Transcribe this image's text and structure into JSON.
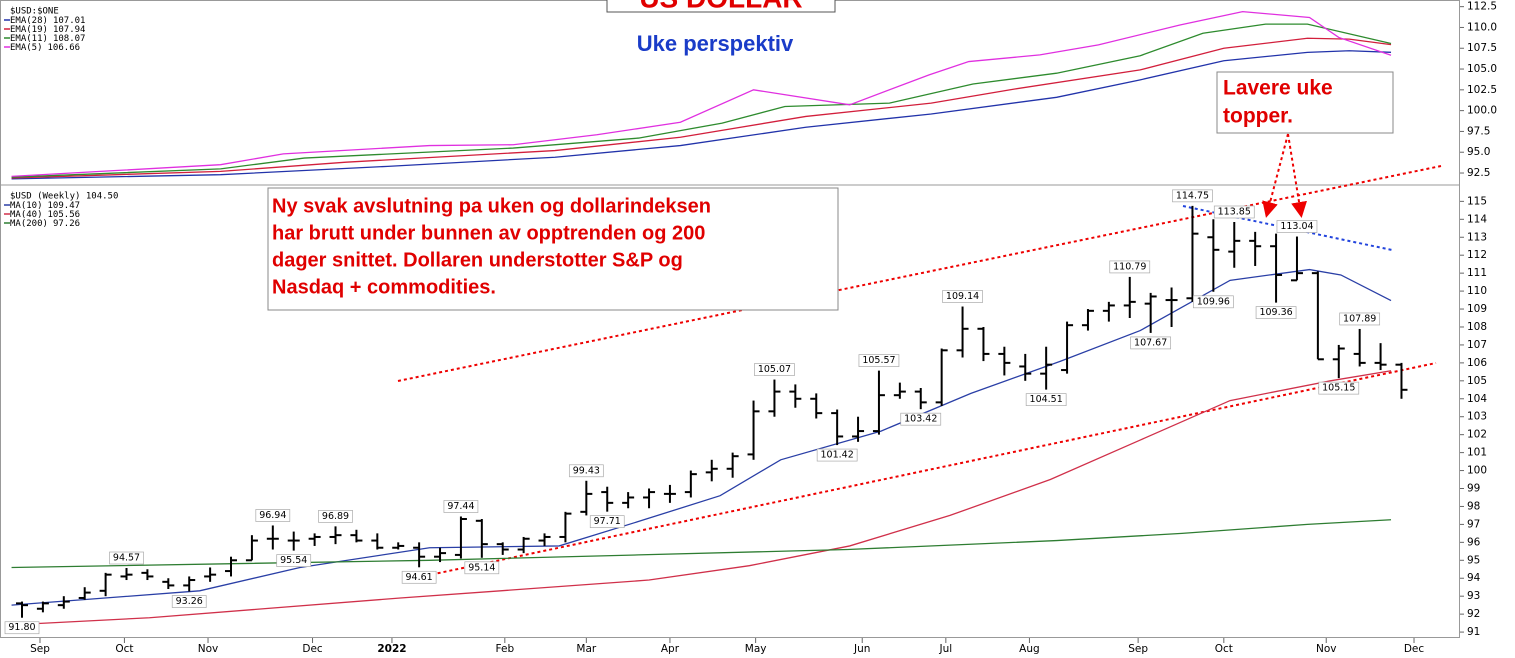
{
  "chart_data": [
    {
      "type": "line",
      "title": "US DOLLAR",
      "subtitle": "Uke perspektiv",
      "legend_title": "$USD:$ONE",
      "xlim": [
        -0.67,
        68.8
      ],
      "ylim": [
        91.3,
        113.3
      ],
      "yticks": [
        92.5,
        {
          "value": 95,
          "label": "95.0"
        },
        97.5,
        {
          "value": 100,
          "label": "100.0"
        },
        102.5,
        {
          "value": 105,
          "label": "105.0"
        },
        107.5,
        {
          "value": 110,
          "label": "110.0"
        },
        112.5
      ],
      "series": [
        {
          "name": "EMA(28)",
          "color": "#2233aa",
          "x": [
            -0.5,
            9.5,
            17.5,
            25.5,
            31.5,
            37.5,
            43.5,
            49.5,
            53.5,
            57.5,
            61.5,
            63.5,
            65.5
          ],
          "values": [
            91.8,
            92.3,
            93.3,
            94.4,
            95.8,
            98.0,
            99.6,
            101.6,
            103.7,
            106.0,
            107.0,
            107.2,
            107.01
          ]
        },
        {
          "name": "EMA(19)",
          "color": "#d21f3c",
          "x": [
            -0.5,
            9.5,
            15.5,
            25.5,
            31.5,
            37.5,
            43.5,
            47.5,
            53.5,
            57.5,
            61.5,
            63.5,
            65.5
          ],
          "values": [
            91.9,
            92.7,
            93.8,
            95.2,
            96.8,
            99.3,
            100.9,
            102.6,
            104.9,
            107.5,
            108.7,
            108.6,
            107.94
          ]
        },
        {
          "name": "EMA(11)",
          "color": "#2e8b2e",
          "x": [
            -0.5,
            9.5,
            13.5,
            23.5,
            29.5,
            33.5,
            36.5,
            41.5,
            45.5,
            49.5,
            53.5,
            56.5,
            59.5,
            61.5,
            65.5
          ],
          "values": [
            92.0,
            93.0,
            94.3,
            95.5,
            96.7,
            98.5,
            100.5,
            100.9,
            103.2,
            104.5,
            106.6,
            109.3,
            110.4,
            110.4,
            108.07
          ]
        },
        {
          "name": "EMA(5)",
          "color": "#e030e0",
          "x": [
            -0.5,
            4.5,
            9.5,
            12.5,
            19.5,
            23.5,
            27.5,
            31.5,
            35,
            39.6,
            43.4,
            45.3,
            48.7,
            51.5,
            55.4,
            58.4,
            61.6,
            63,
            65.5
          ],
          "values": [
            92.1,
            92.8,
            93.5,
            94.8,
            95.8,
            95.9,
            97.1,
            98.6,
            102.5,
            100.7,
            104.3,
            105.9,
            106.7,
            107.9,
            110.3,
            111.9,
            111.2,
            108.8,
            106.66
          ]
        }
      ]
    },
    {
      "type": "ohlc",
      "legend_title": "$USD (Weekly) 104.50",
      "xlim": [
        -0.67,
        68.8
      ],
      "ylim": [
        90.67,
        115.8
      ],
      "yticks": [
        91,
        92,
        93,
        94,
        95,
        96,
        97,
        98,
        99,
        100,
        101,
        102,
        103,
        104,
        105,
        106,
        107,
        108,
        109,
        110,
        111,
        112,
        113,
        114,
        115
      ],
      "xticks": [
        {
          "value": 0.86,
          "label": "Sep"
        },
        {
          "value": 4.9,
          "label": "Oct"
        },
        {
          "value": 8.9,
          "label": "Nov"
        },
        {
          "value": 13.9,
          "label": "Dec"
        },
        {
          "value": 17.7,
          "label": "2022",
          "bold": true
        },
        {
          "value": 23.1,
          "label": "Feb"
        },
        {
          "value": 27.0,
          "label": "Mar"
        },
        {
          "value": 31.0,
          "label": "Apr"
        },
        {
          "value": 35.1,
          "label": "May"
        },
        {
          "value": 40.2,
          "label": "Jun"
        },
        {
          "value": 44.2,
          "label": "Jul"
        },
        {
          "value": 48.2,
          "label": "Aug"
        },
        {
          "value": 53.4,
          "label": "Sep"
        },
        {
          "value": 57.5,
          "label": "Oct"
        },
        {
          "value": 62.4,
          "label": "Nov"
        },
        {
          "value": 66.6,
          "label": "Dec"
        }
      ],
      "ohlc": {
        "color": "#000000",
        "open": [
          92.6,
          92.3,
          92.5,
          92.9,
          93.3,
          94.1,
          94.3,
          93.8,
          93.6,
          94.1,
          94.4,
          95.0,
          96.2,
          96.1,
          96.2,
          96.3,
          96.4,
          96.1,
          95.7,
          95.7,
          95.2,
          95.3,
          97.2,
          95.9,
          95.6,
          96.1,
          96.3,
          97.7,
          98.8,
          98.2,
          98.5,
          98.7,
          98.8,
          99.9,
          100.1,
          100.9,
          103.3,
          104.4,
          104.0,
          103.2,
          101.9,
          102.2,
          104.2,
          104.4,
          103.8,
          106.7,
          107.9,
          106.5,
          105.8,
          105.4,
          105.6,
          108.1,
          108.9,
          109.2,
          109.3,
          109.5,
          109.6,
          113.0,
          112.2,
          112.8,
          112.5,
          110.6,
          111.0,
          106.2,
          106.5,
          106.0,
          105.9
        ],
        "high": [
          92.7,
          92.7,
          93.0,
          93.5,
          94.3,
          94.57,
          94.5,
          94.0,
          94.1,
          94.6,
          95.2,
          96.4,
          96.94,
          96.6,
          96.5,
          96.89,
          96.7,
          96.5,
          96.0,
          96.0,
          95.7,
          97.44,
          97.3,
          96.0,
          96.3,
          96.5,
          97.7,
          99.43,
          99.1,
          98.8,
          99.0,
          99.2,
          100.0,
          100.6,
          101.0,
          103.9,
          105.07,
          104.8,
          104.3,
          103.4,
          103.0,
          105.57,
          104.9,
          104.6,
          106.8,
          109.14,
          108.0,
          106.9,
          106.5,
          106.9,
          108.3,
          109.0,
          109.4,
          110.79,
          109.9,
          110.2,
          114.75,
          114.0,
          113.85,
          113.3,
          113.2,
          113.04,
          111.1,
          107.0,
          107.89,
          107.1,
          106.0
        ],
        "low": [
          91.8,
          92.1,
          92.3,
          92.8,
          93.0,
          93.9,
          93.9,
          93.4,
          93.26,
          93.8,
          94.1,
          95.0,
          95.6,
          95.54,
          95.8,
          95.9,
          96.0,
          95.6,
          95.6,
          94.61,
          94.9,
          95.1,
          95.14,
          95.3,
          95.4,
          95.8,
          96.0,
          97.5,
          97.71,
          97.9,
          97.9,
          98.2,
          98.5,
          99.4,
          99.6,
          100.6,
          103.0,
          103.5,
          102.9,
          101.42,
          101.6,
          102.0,
          104.0,
          103.42,
          103.6,
          106.3,
          106.1,
          105.3,
          105.0,
          104.51,
          105.4,
          107.8,
          108.3,
          108.5,
          107.67,
          108.0,
          109.4,
          109.96,
          111.3,
          111.4,
          109.36,
          110.6,
          106.2,
          105.15,
          105.8,
          105.6,
          104.0
        ],
        "close": [
          92.5,
          92.6,
          92.7,
          93.2,
          94.2,
          94.2,
          94.1,
          93.6,
          93.9,
          94.2,
          95.0,
          96.1,
          96.2,
          96.1,
          96.3,
          96.4,
          96.1,
          95.7,
          95.8,
          95.2,
          95.4,
          97.3,
          95.9,
          95.6,
          96.2,
          96.3,
          97.6,
          98.7,
          98.2,
          98.5,
          98.8,
          98.7,
          99.8,
          100.1,
          100.8,
          103.3,
          104.4,
          104.0,
          103.2,
          101.9,
          102.2,
          104.2,
          104.4,
          103.8,
          106.7,
          107.9,
          106.5,
          106.0,
          105.4,
          105.9,
          108.1,
          108.9,
          109.2,
          109.4,
          109.7,
          109.5,
          113.2,
          112.3,
          112.8,
          112.5,
          110.9,
          111.0,
          106.2,
          106.8,
          106.0,
          105.9,
          104.5
        ],
        "high_labels": {
          "5": "94.57",
          "12": "96.94",
          "15": "96.89",
          "21": "97.44",
          "27": "99.43",
          "36": "105.07",
          "41": "105.57",
          "45": "109.14",
          "53": "110.79",
          "56": "114.75",
          "58": "113.85",
          "61": "113.04",
          "64": "107.89"
        },
        "low_labels": {
          "0": "91.80",
          "8": "93.26",
          "13": "95.54",
          "19": "94.61",
          "22": "95.14",
          "28": "97.71",
          "39": "101.42",
          "43": "103.42",
          "49": "104.51",
          "54": "107.67",
          "57": "109.96",
          "60": "109.36",
          "63": "105.15"
        }
      },
      "series": [
        {
          "name": "MA(10)",
          "color": "#2a3fa6",
          "x": [
            -0.5,
            8.5,
            13.3,
            19.5,
            25.7,
            29.6,
            33.4,
            36.3,
            41.1,
            45.4,
            49.7,
            53.5,
            57.8,
            61.6,
            63.1,
            65.5
          ],
          "values": [
            92.5,
            93.3,
            94.6,
            95.7,
            95.8,
            97.2,
            98.6,
            100.6,
            102.2,
            104.3,
            106.1,
            107.8,
            110.6,
            111.2,
            110.9,
            109.47
          ]
        },
        {
          "name": "MA(40)",
          "color": "#d0304a",
          "x": [
            -0.5,
            6.1,
            18.1,
            22.9,
            30,
            34.8,
            39.6,
            44.4,
            49.2,
            53.5,
            57.8,
            62.6,
            65.5
          ],
          "values": [
            91.4,
            91.8,
            92.9,
            93.3,
            93.9,
            94.7,
            95.8,
            97.5,
            99.5,
            101.7,
            103.9,
            105.0,
            105.56
          ]
        },
        {
          "name": "MA(200)",
          "color": "#2e7d32",
          "x": [
            -0.5,
            19.5,
            29.5,
            39.5,
            49.5,
            55.5,
            61.5,
            65.5
          ],
          "values": [
            94.6,
            95.0,
            95.3,
            95.6,
            96.1,
            96.5,
            97.0,
            97.26
          ]
        }
      ],
      "annotation_main": [
        "Ny svak avslutning pa uken og dollarindeksen",
        "har brutt under bunnen av opptrenden og 200",
        "dager snittet. Dollaren understotter S&P og",
        "Nasdaq + commodities."
      ],
      "annotation_tops": [
        "Lavere uke",
        "topper."
      ]
    }
  ]
}
